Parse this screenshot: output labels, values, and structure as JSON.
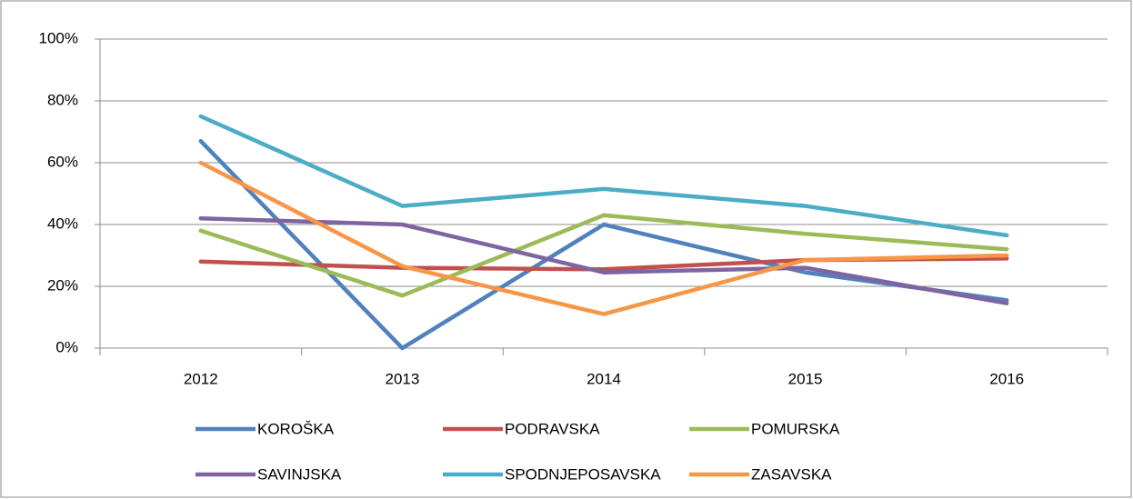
{
  "chart_data": {
    "type": "line",
    "categories": [
      "2012",
      "2013",
      "2014",
      "2015",
      "2016"
    ],
    "series": [
      {
        "name": "KOROŠKA",
        "color": "#4f81bd",
        "values": [
          67,
          0,
          40,
          24.5,
          15.5
        ]
      },
      {
        "name": "PODRAVSKA",
        "color": "#c0504d",
        "values": [
          28,
          26,
          25.5,
          28.5,
          29
        ]
      },
      {
        "name": "POMURSKA",
        "color": "#9bbb59",
        "values": [
          38,
          17,
          43,
          37,
          32
        ]
      },
      {
        "name": "SAVINJSKA",
        "color": "#8064a2",
        "values": [
          42,
          40,
          24.5,
          26,
          14.5
        ]
      },
      {
        "name": "SPODNJEPOSAVSKA",
        "color": "#4bacc6",
        "values": [
          75,
          46,
          51.5,
          46,
          36.5
        ]
      },
      {
        "name": "ZASAVSKA",
        "color": "#f79646",
        "values": [
          60,
          26.5,
          11,
          28.5,
          30
        ]
      }
    ],
    "ylim": [
      0,
      100
    ],
    "yticks": [
      {
        "value": 0,
        "label": "0%"
      },
      {
        "value": 20,
        "label": "20%"
      },
      {
        "value": 40,
        "label": "40%"
      },
      {
        "value": 60,
        "label": "60%"
      },
      {
        "value": 80,
        "label": "80%"
      },
      {
        "value": 100,
        "label": "100%"
      }
    ],
    "grid": true,
    "legend": "bottom"
  }
}
